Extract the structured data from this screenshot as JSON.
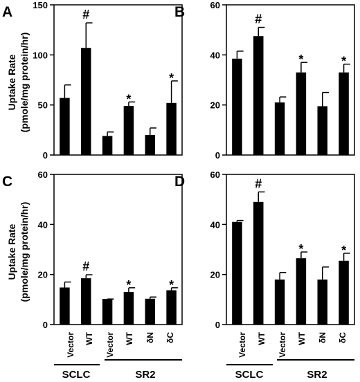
{
  "y_axis_label": [
    "Uptake Rate",
    "(pmole/mg protein/hr)"
  ],
  "category_labels": [
    "Vector",
    "WT",
    "Vector",
    "WT",
    "δN",
    "δC"
  ],
  "group_labels": [
    "SCLC",
    "SR2"
  ],
  "chart_data": [
    {
      "panel": "A",
      "type": "bar",
      "categories": [
        "Vector",
        "WT",
        "Vector",
        "WT",
        "δN",
        "δC"
      ],
      "values": [
        57,
        107,
        19,
        49,
        20,
        52
      ],
      "errors": [
        13,
        25,
        4,
        4,
        7,
        22
      ],
      "markers": [
        "",
        "#",
        "",
        "*",
        "",
        "*"
      ],
      "ylim": [
        0,
        150
      ],
      "yticks": [
        0,
        50,
        100,
        150
      ]
    },
    {
      "panel": "B",
      "type": "bar",
      "categories": [
        "Vector",
        "WT",
        "Vector",
        "WT",
        "δN",
        "δC"
      ],
      "values": [
        38.5,
        47.5,
        21,
        33,
        19.5,
        33
      ],
      "errors": [
        3,
        3.5,
        2.2,
        4,
        5.5,
        3.3
      ],
      "markers": [
        "",
        "#",
        "",
        "*",
        "",
        "*"
      ],
      "ylim": [
        0,
        60
      ],
      "yticks": [
        0,
        20,
        40,
        60
      ]
    },
    {
      "panel": "C",
      "type": "bar",
      "categories": [
        "Vector",
        "WT",
        "Vector",
        "WT",
        "δN",
        "δC"
      ],
      "values": [
        14.8,
        18.5,
        10.2,
        13,
        10.3,
        13.7
      ],
      "errors": [
        2.2,
        1.4,
        0,
        1.7,
        0.7,
        1
      ],
      "markers": [
        "",
        "#",
        "",
        "*",
        "",
        "*"
      ],
      "ylim": [
        0,
        60
      ],
      "yticks": [
        0,
        20,
        40,
        60
      ]
    },
    {
      "panel": "D",
      "type": "bar",
      "categories": [
        "Vector",
        "WT",
        "Vector",
        "WT",
        "δN",
        "δC"
      ],
      "values": [
        41,
        49,
        18,
        26.5,
        18,
        25.5
      ],
      "errors": [
        0.6,
        4,
        2.8,
        2.5,
        5,
        3
      ],
      "markers": [
        "",
        "#",
        "",
        "*",
        "",
        "*"
      ],
      "ylim": [
        0,
        60
      ],
      "yticks": [
        0,
        20,
        40,
        60
      ]
    }
  ]
}
